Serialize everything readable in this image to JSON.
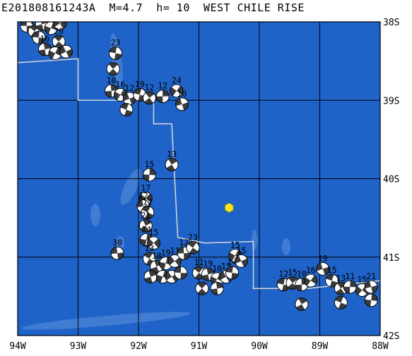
{
  "title": "E201808161243A  M=4.7  h= 10  WEST CHILE RISE",
  "colors": {
    "ocean": "#1f63c8",
    "ridge": "#5e93dc",
    "fault": "#d8d8d8",
    "epicenter": "#ffe619"
  },
  "map_data": {
    "lon_range": [
      -94,
      -88
    ],
    "lat_range": [
      -42,
      -38
    ],
    "lon_ticks": [
      {
        "value": -94,
        "label": "94W"
      },
      {
        "value": -93,
        "label": "93W"
      },
      {
        "value": -92,
        "label": "92W"
      },
      {
        "value": -91,
        "label": "91W"
      },
      {
        "value": -90,
        "label": "90W"
      },
      {
        "value": -89,
        "label": "89W"
      },
      {
        "value": -88,
        "label": "88W"
      }
    ],
    "lat_ticks": [
      {
        "value": -38,
        "label": "38S"
      },
      {
        "value": -39,
        "label": "39S"
      },
      {
        "value": -40,
        "label": "40S"
      },
      {
        "value": -41,
        "label": "41S"
      },
      {
        "value": -42,
        "label": "42S"
      }
    ],
    "plate_boundary": [
      [
        -94.0,
        -38.52
      ],
      [
        -93.0,
        -38.47
      ],
      [
        -93.0,
        -39.0
      ],
      [
        -91.75,
        -39.0
      ],
      [
        -91.75,
        -39.3
      ],
      [
        -91.45,
        -39.3
      ],
      [
        -91.35,
        -40.75
      ],
      [
        -90.9,
        -40.82
      ],
      [
        -90.1,
        -40.8
      ],
      [
        -90.1,
        -41.4
      ],
      [
        -89.2,
        -41.4
      ],
      [
        -88.0,
        -41.3
      ]
    ],
    "epicenter": {
      "lon": -90.5,
      "lat": -40.37
    },
    "mechanisms": [
      {
        "lon": -93.85,
        "lat": -38.05,
        "label": "32"
      },
      {
        "lon": -93.72,
        "lat": -38.12,
        "label": "15"
      },
      {
        "lon": -93.6,
        "lat": -38.03,
        "label": "13"
      },
      {
        "lon": -93.45,
        "lat": -38.08,
        "label": "15"
      },
      {
        "lon": -93.3,
        "lat": -38.02,
        "label": ""
      },
      {
        "lon": -93.65,
        "lat": -38.2,
        "label": ""
      },
      {
        "lon": -93.32,
        "lat": -38.25,
        "label": "20"
      },
      {
        "lon": -93.55,
        "lat": -38.35,
        "label": "16"
      },
      {
        "lon": -93.38,
        "lat": -38.4,
        "label": ""
      },
      {
        "lon": -93.2,
        "lat": -38.38,
        "label": ""
      },
      {
        "lon": -92.38,
        "lat": -38.4,
        "label": "23"
      },
      {
        "lon": -92.42,
        "lat": -38.6,
        "label": ""
      },
      {
        "lon": -92.45,
        "lat": -38.88,
        "label": "10"
      },
      {
        "lon": -92.3,
        "lat": -38.93,
        "label": "16"
      },
      {
        "lon": -92.15,
        "lat": -38.98,
        "label": "12"
      },
      {
        "lon": -91.98,
        "lat": -38.93,
        "label": "19"
      },
      {
        "lon": -91.82,
        "lat": -38.97,
        "label": "12"
      },
      {
        "lon": -91.6,
        "lat": -38.95,
        "label": "12"
      },
      {
        "lon": -91.37,
        "lat": -38.88,
        "label": "24"
      },
      {
        "lon": -91.28,
        "lat": -39.05,
        "label": "10"
      },
      {
        "lon": -92.2,
        "lat": -39.12,
        "label": ""
      },
      {
        "lon": -91.45,
        "lat": -39.82,
        "label": "13"
      },
      {
        "lon": -91.82,
        "lat": -39.95,
        "label": "15"
      },
      {
        "lon": -91.88,
        "lat": -40.25,
        "label": "17"
      },
      {
        "lon": -91.92,
        "lat": -40.35,
        "label": "12"
      },
      {
        "lon": -91.85,
        "lat": -40.43,
        "label": "12"
      },
      {
        "lon": -91.88,
        "lat": -40.6,
        "label": "21"
      },
      {
        "lon": -91.87,
        "lat": -40.78,
        "label": "14"
      },
      {
        "lon": -91.75,
        "lat": -40.82,
        "label": "15"
      },
      {
        "lon": -92.35,
        "lat": -40.95,
        "label": "30"
      },
      {
        "lon": -91.82,
        "lat": -41.02,
        "label": "13"
      },
      {
        "lon": -91.7,
        "lat": -41.12,
        "label": "18"
      },
      {
        "lon": -91.55,
        "lat": -41.08,
        "label": "19"
      },
      {
        "lon": -91.4,
        "lat": -41.05,
        "label": "11"
      },
      {
        "lon": -91.25,
        "lat": -40.95,
        "label": "12"
      },
      {
        "lon": -91.1,
        "lat": -40.88,
        "label": "23"
      },
      {
        "lon": -91.8,
        "lat": -41.25,
        "label": ""
      },
      {
        "lon": -91.6,
        "lat": -41.25,
        "label": ""
      },
      {
        "lon": -91.45,
        "lat": -41.25,
        "label": ""
      },
      {
        "lon": -91.3,
        "lat": -41.2,
        "label": ""
      },
      {
        "lon": -91.0,
        "lat": -41.2,
        "label": "11"
      },
      {
        "lon": -90.85,
        "lat": -41.22,
        "label": "19"
      },
      {
        "lon": -90.7,
        "lat": -41.28,
        "label": "10"
      },
      {
        "lon": -90.55,
        "lat": -41.25,
        "label": "15"
      },
      {
        "lon": -90.45,
        "lat": -41.2,
        "label": "14"
      },
      {
        "lon": -90.95,
        "lat": -41.4,
        "label": ""
      },
      {
        "lon": -90.7,
        "lat": -41.4,
        "label": ""
      },
      {
        "lon": -90.4,
        "lat": -40.98,
        "label": "15"
      },
      {
        "lon": -90.3,
        "lat": -41.05,
        "label": "15"
      },
      {
        "lon": -89.6,
        "lat": -41.35,
        "label": "12"
      },
      {
        "lon": -89.45,
        "lat": -41.33,
        "label": "15"
      },
      {
        "lon": -89.3,
        "lat": -41.35,
        "label": "10"
      },
      {
        "lon": -89.15,
        "lat": -41.3,
        "label": "16"
      },
      {
        "lon": -88.95,
        "lat": -41.15,
        "label": "19"
      },
      {
        "lon": -88.8,
        "lat": -41.3,
        "label": "15"
      },
      {
        "lon": -88.65,
        "lat": -41.4,
        "label": "13"
      },
      {
        "lon": -88.5,
        "lat": -41.38,
        "label": "11"
      },
      {
        "lon": -88.3,
        "lat": -41.42,
        "label": "15"
      },
      {
        "lon": -88.15,
        "lat": -41.38,
        "label": "21"
      },
      {
        "lon": -88.65,
        "lat": -41.58,
        "label": ""
      },
      {
        "lon": -89.3,
        "lat": -41.6,
        "label": ""
      },
      {
        "lon": -88.15,
        "lat": -41.55,
        "label": ""
      }
    ]
  }
}
